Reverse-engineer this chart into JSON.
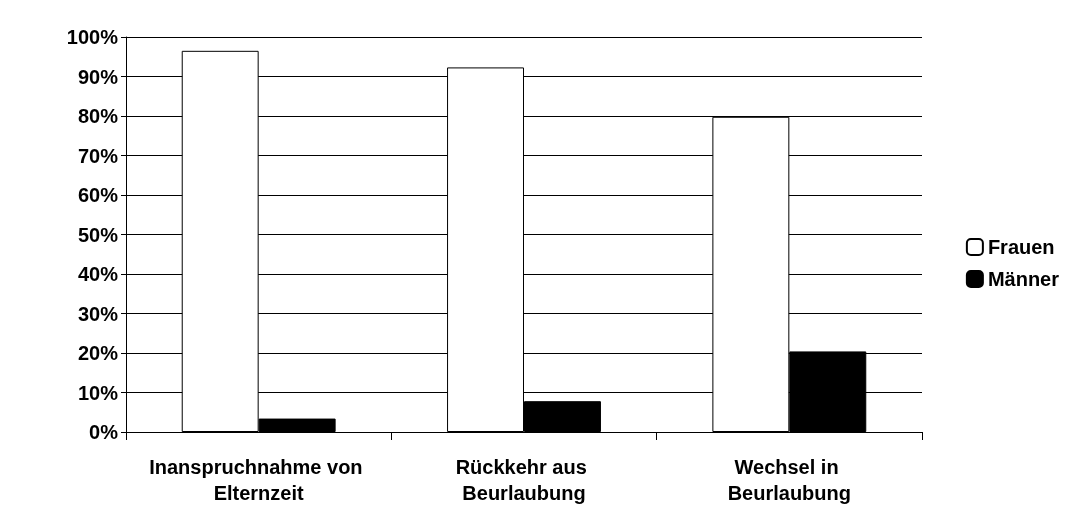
{
  "chart_data": {
    "type": "bar",
    "categories": [
      "Inanspruchnahme von Elternzeit",
      "Rückkehr aus Beurlaubung",
      "Wechsel in Beurlaubung"
    ],
    "series": [
      {
        "name": "Frauen",
        "color": "#ffffff",
        "values": [
          96.5,
          92.3,
          79.8
        ]
      },
      {
        "name": "Männer",
        "color": "#000000",
        "values": [
          3.4,
          7.8,
          20.4
        ]
      }
    ],
    "ylim": [
      0,
      100
    ],
    "yticks": [
      {
        "value": 0,
        "label": "0%"
      },
      {
        "value": 10,
        "label": "10%"
      },
      {
        "value": 20,
        "label": "20%"
      },
      {
        "value": 30,
        "label": "30%"
      },
      {
        "value": 40,
        "label": "40%"
      },
      {
        "value": 50,
        "label": "50%"
      },
      {
        "value": 60,
        "label": "60%"
      },
      {
        "value": 70,
        "label": "70%"
      },
      {
        "value": 80,
        "label": "80%"
      },
      {
        "value": 90,
        "label": "90%"
      },
      {
        "value": 100,
        "label": "100%"
      }
    ],
    "grid": "y",
    "legend": "right"
  }
}
